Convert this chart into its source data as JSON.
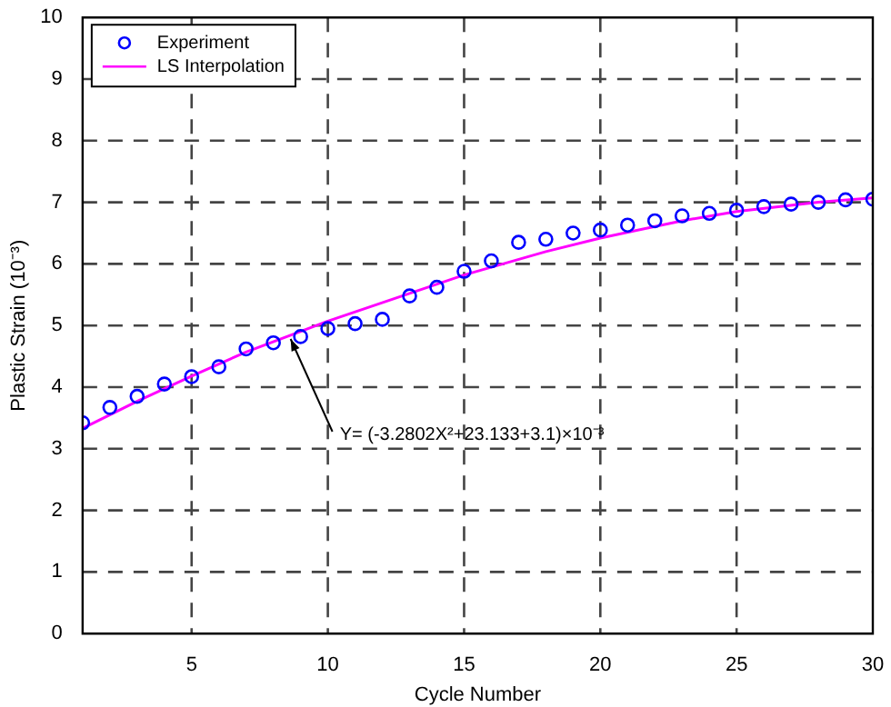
{
  "chart_data": {
    "type": "scatter",
    "xlabel": "Cycle Number",
    "ylabel": "Plastic Strain (10⁻³)",
    "xlim": [
      1,
      30
    ],
    "xticks": [
      5,
      10,
      15,
      20,
      25,
      30
    ],
    "ylim": [
      0,
      10
    ],
    "yticks": [
      0,
      1,
      2,
      3,
      4,
      5,
      6,
      7,
      8,
      9,
      10
    ],
    "grid": true,
    "legend": "top left",
    "series": [
      {
        "name": "Experiment",
        "marker": "circle",
        "color": "#0000ff",
        "x": [
          1,
          2,
          3,
          4,
          5,
          6,
          7,
          8,
          9,
          10,
          11,
          12,
          13,
          14,
          15,
          16,
          17,
          18,
          19,
          20,
          21,
          22,
          23,
          24,
          25,
          26,
          27,
          28,
          29,
          30
        ],
        "values": [
          3.42,
          3.67,
          3.85,
          4.05,
          4.17,
          4.33,
          4.62,
          4.72,
          4.82,
          4.95,
          5.03,
          5.1,
          5.48,
          5.62,
          5.88,
          6.05,
          6.35,
          6.4,
          6.5,
          6.55,
          6.63,
          6.7,
          6.78,
          6.82,
          6.87,
          6.93,
          6.97,
          7.0,
          7.04,
          7.05
        ]
      },
      {
        "name": "LS Interpolation",
        "type": "line",
        "marker": "none",
        "line_style": "solid",
        "color": "#ff00ff",
        "x": [
          1,
          3,
          5,
          7,
          10,
          13,
          15,
          18,
          20,
          23,
          25,
          28,
          30
        ],
        "values": [
          3.33,
          3.77,
          4.18,
          4.57,
          5.07,
          5.52,
          5.82,
          6.2,
          6.42,
          6.7,
          6.85,
          7.0,
          7.07
        ]
      }
    ],
    "annotations": [
      {
        "text": "Y= (-3.2802X²+23.133+3.1)×10⁻³",
        "x": 8.5,
        "y": 4.9
      }
    ]
  }
}
